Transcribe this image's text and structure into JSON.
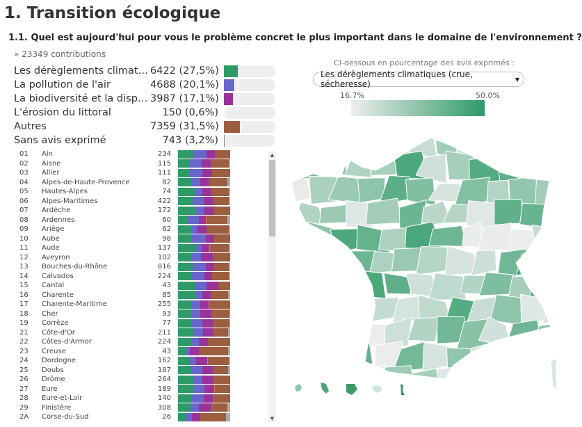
{
  "title": "1. Transition écologique",
  "question": "1.1. Quel est aujourd'hui pour vous le problème concret le plus important dans le domaine de l'environnement ?",
  "contributions": "» 23349 contributions",
  "colors": {
    "climat": "#2e9a68",
    "air": "#6666cc",
    "biodiv": "#993399",
    "erosion": "#e07b53",
    "autres": "#9c5e3f",
    "sans_avis": "#aaaaaa",
    "track": "#eeeeee"
  },
  "summary": [
    {
      "label": "Les dérèglements climat…",
      "value": "6422 (27,5%)",
      "pct": 27.5,
      "color": "#2e9a68"
    },
    {
      "label": "La pollution de l'air",
      "value": "4688 (20,1%)",
      "pct": 20.1,
      "color": "#6666cc"
    },
    {
      "label": "La biodiversité et la disp…",
      "value": "3987 (17,1%)",
      "pct": 17.1,
      "color": "#993399"
    },
    {
      "label": "L'érosion du littoral",
      "value": "150 (0,6%)",
      "pct": 0.6,
      "color": "#e07b53"
    },
    {
      "label": "Autres",
      "value": "7359 (31,5%)",
      "pct": 31.5,
      "color": "#9c5e3f"
    },
    {
      "label": "Sans avis exprimé",
      "value": "743 (3,2%)",
      "pct": 3.2,
      "color": "#aaaaaa"
    }
  ],
  "departments": [
    {
      "code": "01",
      "name": "Ain",
      "count": "234",
      "shares": [
        30,
        24,
        16,
        0,
        30,
        0
      ]
    },
    {
      "code": "02",
      "name": "Aisne",
      "count": "115",
      "shares": [
        22,
        23,
        18,
        0,
        34,
        3
      ]
    },
    {
      "code": "03",
      "name": "Allier",
      "count": "111",
      "shares": [
        23,
        24,
        18,
        0,
        35,
        0
      ]
    },
    {
      "code": "04",
      "name": "Alpes-de-Haute-Provence",
      "count": "82",
      "shares": [
        27,
        15,
        17,
        0,
        36,
        5
      ]
    },
    {
      "code": "05",
      "name": "Hautes-Alpes",
      "count": "74",
      "shares": [
        32,
        14,
        18,
        0,
        33,
        3
      ]
    },
    {
      "code": "06",
      "name": "Alpes-Maritimes",
      "count": "422",
      "shares": [
        28,
        21,
        18,
        0,
        30,
        3
      ]
    },
    {
      "code": "07",
      "name": "Ardèche",
      "count": "172",
      "shares": [
        34,
        17,
        17,
        0,
        32,
        0
      ]
    },
    {
      "code": "08",
      "name": "Ardennes",
      "count": "60",
      "shares": [
        18,
        22,
        13,
        1,
        40,
        6
      ]
    },
    {
      "code": "09",
      "name": "Ariège",
      "count": "62",
      "shares": [
        26,
        10,
        18,
        0,
        43,
        3
      ]
    },
    {
      "code": "10",
      "name": "Aube",
      "count": "98",
      "shares": [
        26,
        27,
        16,
        0,
        31,
        0
      ]
    },
    {
      "code": "11",
      "name": "Aude",
      "count": "137",
      "shares": [
        33,
        12,
        15,
        1,
        36,
        3
      ]
    },
    {
      "code": "12",
      "name": "Aveyron",
      "count": "102",
      "shares": [
        26,
        18,
        23,
        0,
        33,
        0
      ]
    },
    {
      "code": "13",
      "name": "Bouches-du-Rhône",
      "count": "816",
      "shares": [
        28,
        25,
        15,
        0,
        29,
        3
      ]
    },
    {
      "code": "14",
      "name": "Calvados",
      "count": "224",
      "shares": [
        26,
        24,
        15,
        0,
        32,
        3
      ]
    },
    {
      "code": "15",
      "name": "Cantal",
      "count": "43",
      "shares": [
        35,
        19,
        23,
        0,
        23,
        0
      ]
    },
    {
      "code": "16",
      "name": "Charente",
      "count": "85",
      "shares": [
        34,
        13,
        15,
        0,
        34,
        4
      ]
    },
    {
      "code": "17",
      "name": "Charente-Maritime",
      "count": "255",
      "shares": [
        25,
        18,
        16,
        1,
        40,
        0
      ]
    },
    {
      "code": "18",
      "name": "Cher",
      "count": "93",
      "shares": [
        27,
        16,
        21,
        0,
        34,
        2
      ]
    },
    {
      "code": "19",
      "name": "Corrèze",
      "count": "77",
      "shares": [
        25,
        22,
        19,
        0,
        32,
        2
      ]
    },
    {
      "code": "21",
      "name": "Côte-d'Or",
      "count": "211",
      "shares": [
        31,
        17,
        18,
        0,
        30,
        4
      ]
    },
    {
      "code": "22",
      "name": "Côtes-d'Armor",
      "count": "224",
      "shares": [
        25,
        15,
        17,
        0,
        43,
        0
      ]
    },
    {
      "code": "23",
      "name": "Creuse",
      "count": "43",
      "shares": [
        16,
        7,
        17,
        0,
        56,
        4
      ]
    },
    {
      "code": "24",
      "name": "Dordogne",
      "count": "162",
      "shares": [
        21,
        13,
        22,
        1,
        40,
        3
      ]
    },
    {
      "code": "25",
      "name": "Doubs",
      "count": "187",
      "shares": [
        26,
        20,
        21,
        0,
        29,
        4
      ]
    },
    {
      "code": "26",
      "name": "Drôme",
      "count": "264",
      "shares": [
        30,
        17,
        20,
        0,
        33,
        0
      ]
    },
    {
      "code": "27",
      "name": "Eure",
      "count": "189",
      "shares": [
        30,
        20,
        19,
        1,
        30,
        0
      ]
    },
    {
      "code": "28",
      "name": "Eure-et-Loir",
      "count": "140",
      "shares": [
        25,
        24,
        19,
        1,
        31,
        0
      ]
    },
    {
      "code": "29",
      "name": "Finistère",
      "count": "308",
      "shares": [
        24,
        16,
        22,
        1,
        31,
        6
      ]
    },
    {
      "code": "2A",
      "name": "Corse-du-Sud",
      "count": "26",
      "shares": [
        15,
        12,
        15,
        1,
        49,
        8
      ]
    }
  ],
  "map": {
    "caption": "Ci-dessous en pourcentage des avis exprimés :",
    "selected": "Les dérèglements climatiques (crue, sécheresse)",
    "legend_min": "16.7%",
    "legend_max": "50.0%"
  }
}
